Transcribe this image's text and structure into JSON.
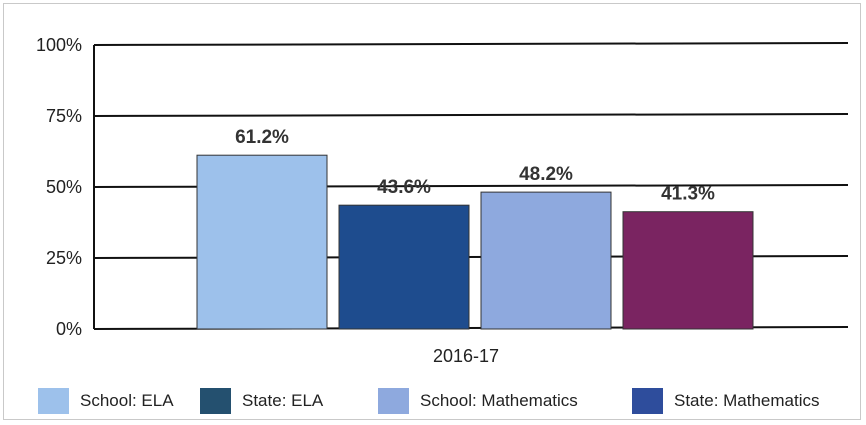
{
  "chart_data": {
    "type": "bar",
    "categories": [
      "2016-17"
    ],
    "series": [
      {
        "name": "School: ELA",
        "values": [
          61.2
        ],
        "label": "61.2%",
        "color": "#9DC1EB"
      },
      {
        "name": "State: ELA",
        "values": [
          43.6
        ],
        "label": "43.6%",
        "color": "#1E4C8E"
      },
      {
        "name": "School: Mathematics",
        "values": [
          48.2
        ],
        "label": "48.2%",
        "color": "#8EA9DE"
      },
      {
        "name": "State: Mathematics",
        "values": [
          41.3
        ],
        "label": "41.3%",
        "color": "#7A2461"
      }
    ],
    "yticks": [
      "0%",
      "25%",
      "50%",
      "75%",
      "100%"
    ],
    "ylim": [
      0,
      100
    ],
    "grid": true,
    "legend_position": "bottom",
    "legend_swatches": [
      "#9DC1EB",
      "#24506F",
      "#8EA9DE",
      "#2E4D9C"
    ]
  }
}
